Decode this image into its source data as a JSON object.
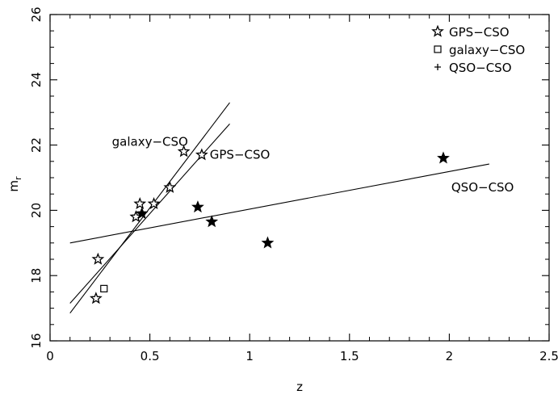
{
  "chart_data": {
    "type": "scatter",
    "title": "",
    "xlabel": "z",
    "ylabel": "m",
    "ylabel_subscript": "r",
    "xlim": [
      0,
      2.5
    ],
    "ylim": [
      16,
      26
    ],
    "xticks": [
      0,
      0.5,
      1,
      1.5,
      2,
      2.5
    ],
    "xtick_labels": [
      "0",
      "0.5",
      "1",
      "1.5",
      "2",
      "2.5"
    ],
    "yticks": [
      16,
      18,
      20,
      22,
      24,
      26
    ],
    "ytick_labels": [
      "16",
      "18",
      "20",
      "22",
      "24",
      "26"
    ],
    "grid": false,
    "legend_position": "top-right",
    "legend": [
      {
        "label": "GPS−CSO",
        "marker": "open-star"
      },
      {
        "label": "galaxy−CSO",
        "marker": "open-square"
      },
      {
        "label": "QSO−CSO",
        "marker": "plus"
      }
    ],
    "series": [
      {
        "marker": "open-star",
        "points": [
          {
            "x": 0.23,
            "y": 17.3
          },
          {
            "x": 0.24,
            "y": 18.5
          },
          {
            "x": 0.43,
            "y": 19.8
          },
          {
            "x": 0.45,
            "y": 20.2
          },
          {
            "x": 0.52,
            "y": 20.2
          },
          {
            "x": 0.6,
            "y": 20.7
          },
          {
            "x": 0.67,
            "y": 21.8
          },
          {
            "x": 0.76,
            "y": 21.7
          }
        ]
      },
      {
        "marker": "open-square",
        "points": [
          {
            "x": 0.27,
            "y": 17.6
          }
        ]
      },
      {
        "marker": "filled-star",
        "points": [
          {
            "x": 0.46,
            "y": 19.9
          },
          {
            "x": 0.74,
            "y": 20.1
          },
          {
            "x": 0.81,
            "y": 19.65
          },
          {
            "x": 1.09,
            "y": 19.0
          },
          {
            "x": 1.97,
            "y": 21.6
          }
        ]
      }
    ],
    "fit_lines": [
      {
        "label": "galaxy−CSO",
        "x": [
          0.1,
          0.9
        ],
        "y": [
          16.85,
          23.3
        ]
      },
      {
        "label": "GPS−CSO",
        "x": [
          0.1,
          0.9
        ],
        "y": [
          17.15,
          22.65
        ]
      },
      {
        "label": "QSO−CSO",
        "x": [
          0.1,
          2.2
        ],
        "y": [
          19.0,
          21.42
        ]
      }
    ],
    "annotations": [
      {
        "text": "galaxy−CSO",
        "x": 0.31,
        "y": 22.1
      },
      {
        "text": "GPS−CSO",
        "x": 0.8,
        "y": 21.7
      },
      {
        "text": "QSO−CSO",
        "x": 2.01,
        "y": 20.7
      }
    ]
  }
}
